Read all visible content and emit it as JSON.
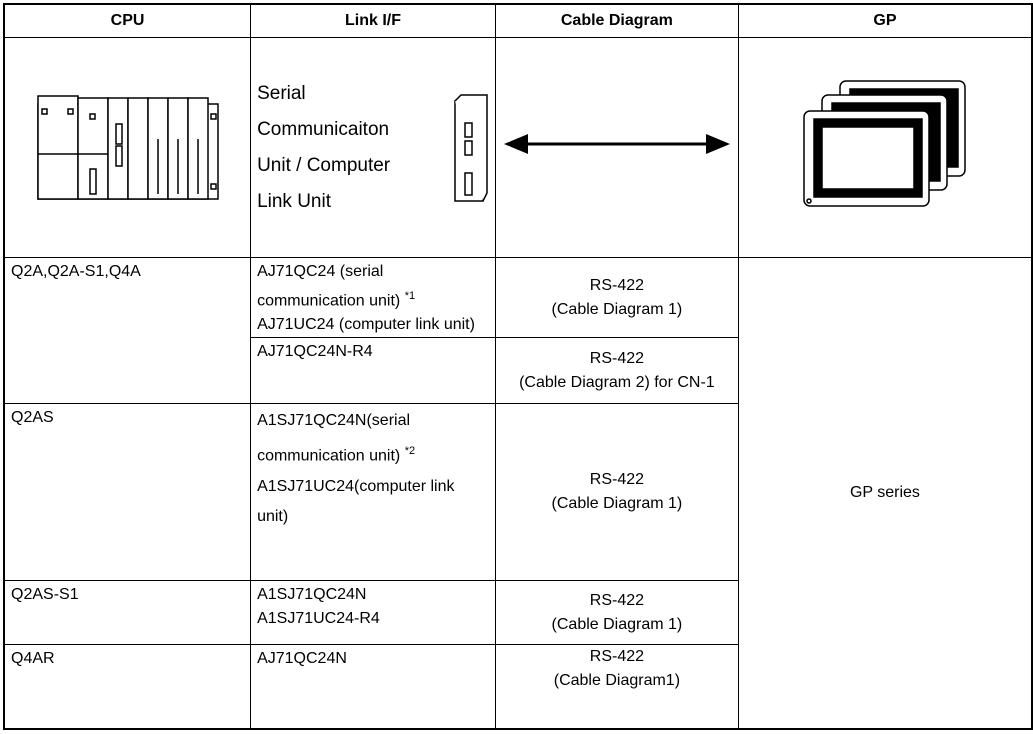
{
  "table": {
    "header": [
      "CPU",
      "Link I/F",
      "Cable Diagram",
      "GP"
    ],
    "image_row": {
      "link_lines": [
        "Serial",
        "Communicaiton",
        "Unit / Computer",
        "Link Unit"
      ]
    },
    "rows": [
      {
        "cpu": "Q2A,Q2A-S1,Q4A",
        "link_lines": [
          "AJ71QC24 (serial",
          "communication unit)",
          "AJ71UC24 (computer link unit)"
        ],
        "note": "*1",
        "cable_lines": [
          "RS-422",
          "(Cable Diagram 1)"
        ]
      },
      {
        "link_lines": [
          "AJ71QC24N-R4"
        ],
        "cable_lines": [
          "RS-422",
          "(Cable Diagram 2) for CN-1"
        ]
      },
      {
        "cpu": "Q2AS",
        "link_lines": [
          "A1SJ71QC24N(serial",
          "communication unit)",
          "A1SJ71UC24(computer link",
          "unit)"
        ],
        "note": "*2",
        "cable_lines": [
          "RS-422",
          "(Cable Diagram 1)"
        ]
      },
      {
        "cpu": "Q2AS-S1",
        "link_lines": [
          "A1SJ71QC24N",
          "A1SJ71UC24-R4"
        ],
        "cable_lines": [
          "RS-422",
          "(Cable Diagram 1)"
        ]
      },
      {
        "cpu": "Q4AR",
        "link_lines": [
          "AJ71QC24N"
        ],
        "cable_lines": [
          "RS-422",
          "(Cable Diagram1)"
        ]
      }
    ],
    "gp": "GP series"
  }
}
